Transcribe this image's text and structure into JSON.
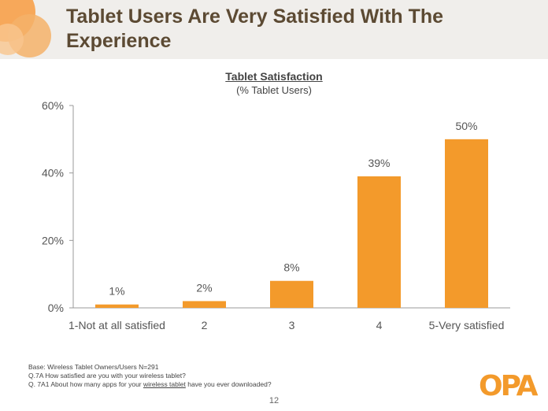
{
  "slide": {
    "title": "Tablet Users Are Very Satisfied With The Experience",
    "page_number": "12",
    "logo_text": "OPA"
  },
  "notes": {
    "line1": "Base:  Wireless Tablet Owners/Users N=291",
    "line2": "Q.7A How satisfied are you with your wireless tablet?",
    "line3_prefix": "Q. 7A1 About how many apps for your ",
    "line3_link": "wireless tablet",
    "line3_suffix": " have you ever downloaded?"
  },
  "colors": {
    "bar": "#f39a2b",
    "title": "#5c4a33"
  },
  "chart_data": {
    "type": "bar",
    "title": "Tablet Satisfaction",
    "subtitle": "(% Tablet Users)",
    "categories": [
      "1-Not at all satisfied",
      "2",
      "3",
      "4",
      "5-Very satisfied"
    ],
    "values": [
      1,
      2,
      8,
      39,
      50
    ],
    "value_labels": [
      "1%",
      "2%",
      "8%",
      "39%",
      "50%"
    ],
    "yticks": [
      0,
      20,
      40,
      60
    ],
    "ytick_labels": [
      "0%",
      "20%",
      "40%",
      "60%"
    ],
    "ylim": [
      0,
      60
    ],
    "xlabel": "",
    "ylabel": ""
  }
}
